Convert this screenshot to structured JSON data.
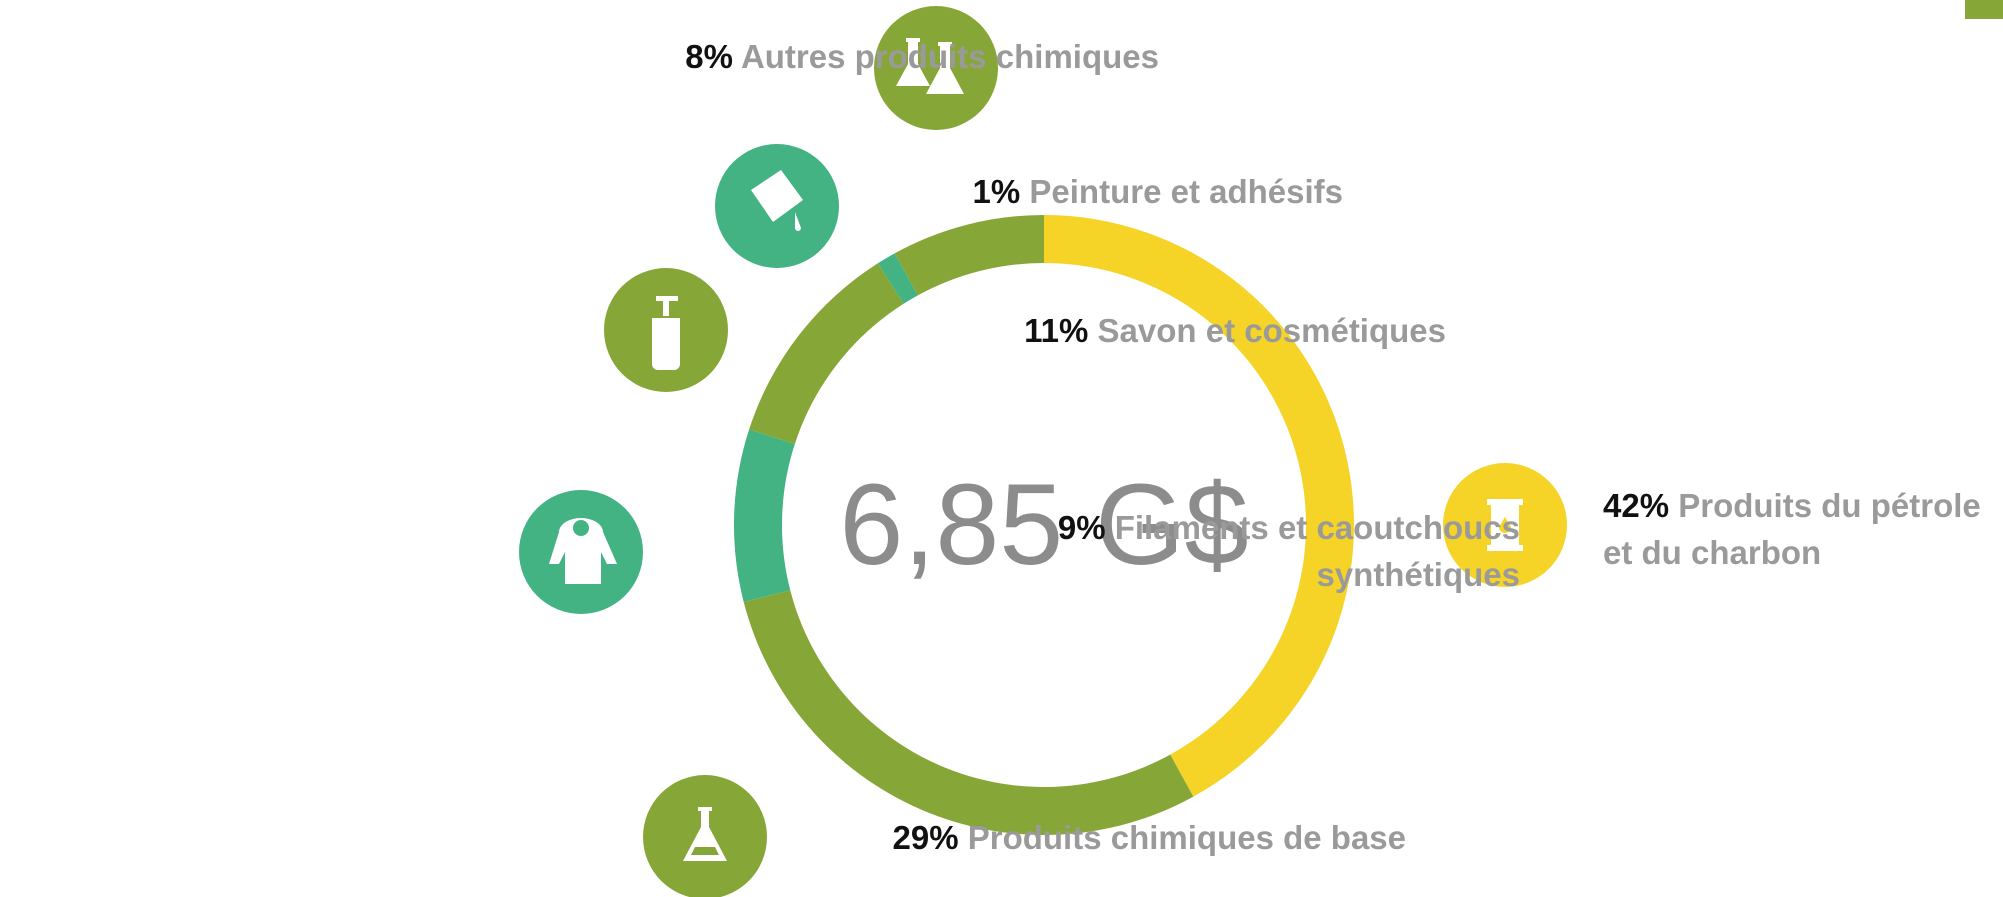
{
  "chart_data": {
    "type": "donut",
    "center_label": "6,85 G$",
    "categories": [
      "Produits du pétrole et du charbon",
      "Produits chimiques de base",
      "Filaments et caoutchoucs synthétiques",
      "Savon et cosmétiques",
      "Peinture et adhésifs",
      "Autres produits chimiques"
    ],
    "values": [
      42,
      29,
      9,
      11,
      1,
      8
    ],
    "value_labels": [
      "42%",
      "29%",
      "9%",
      "11%",
      "1%",
      "8%"
    ],
    "colors": [
      "#f5d327",
      "#86a737",
      "#43b383",
      "#86a737",
      "#43b383",
      "#86a737"
    ]
  }
}
